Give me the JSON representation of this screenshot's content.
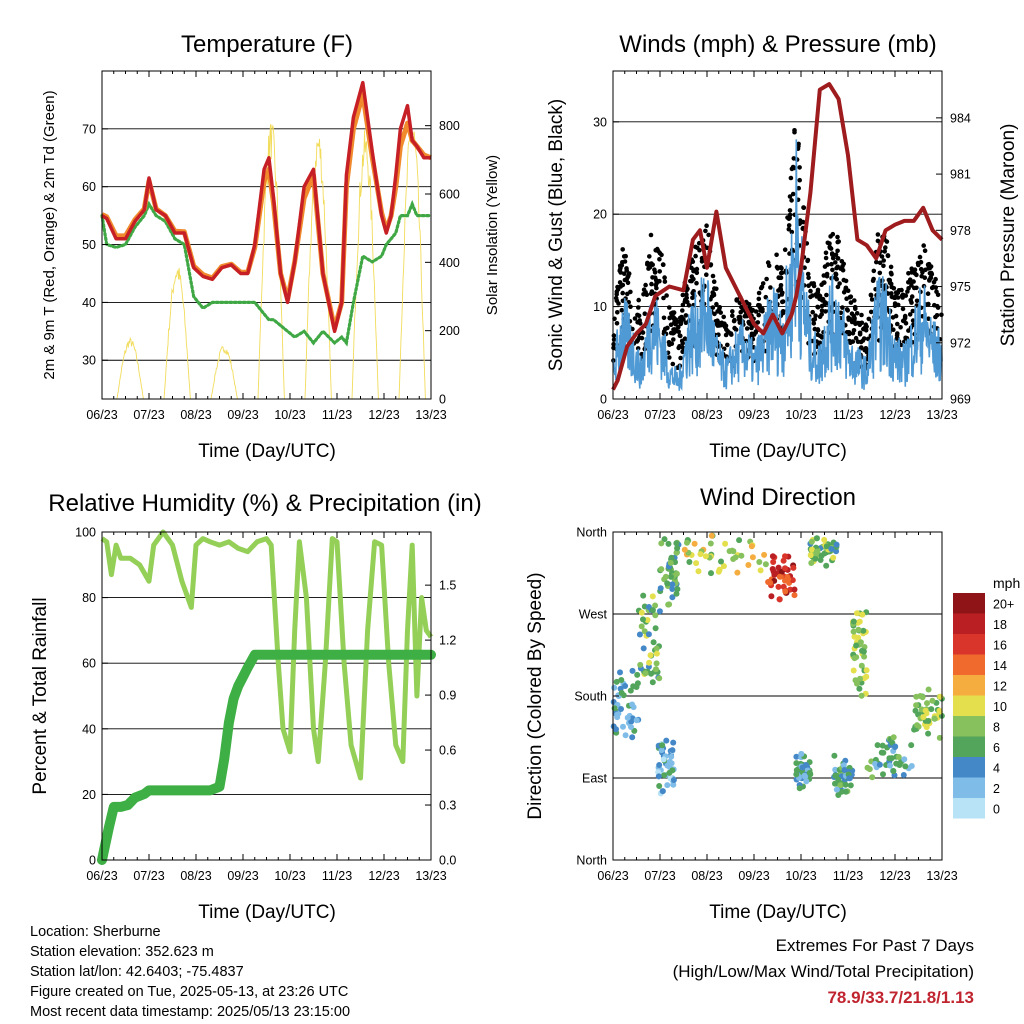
{
  "x_ticks": [
    "06/23",
    "07/23",
    "08/23",
    "09/23",
    "10/23",
    "11/23",
    "12/23",
    "13/23"
  ],
  "x_label": "Time (Day/UTC)",
  "colors": {
    "temp2m": "#c62026",
    "temp9m": "#f08a2c",
    "dew": "#3fa845",
    "solar": "#f2dc5b",
    "gust": "#000000",
    "wind": "#4f99d4",
    "pressure": "#9e1b1e",
    "rh": "#94cf58",
    "precip": "#3eaf44",
    "scale": [
      "#b8e2f5",
      "#7fbde8",
      "#4488c7",
      "#52a55b",
      "#86c15d",
      "#e4df4c",
      "#f5ad40",
      "#ef6a2c",
      "#d9352a",
      "#b91f23",
      "#8e1417"
    ]
  },
  "chart_data": [
    {
      "type": "line",
      "title": "Temperature (F)",
      "xlabel": "Time (Day/UTC)",
      "ylabel": "2m & 9m T (Red, Orange) & 2m Td (Green)",
      "y2label": "Solar Insolation (Yellow)",
      "xlim": [
        0,
        7
      ],
      "ylim": [
        23.3,
        80
      ],
      "yticks": [
        30,
        40,
        50,
        60,
        70
      ],
      "y2lim": [
        0,
        960
      ],
      "y2ticks": [
        0,
        200,
        400,
        600,
        800
      ],
      "x": [
        0,
        0.1,
        0.3,
        0.5,
        0.7,
        0.9,
        1.0,
        1.15,
        1.35,
        1.55,
        1.75,
        1.95,
        2.15,
        2.35,
        2.55,
        2.75,
        2.95,
        3.1,
        3.25,
        3.45,
        3.55,
        3.65,
        3.8,
        3.95,
        4.1,
        4.3,
        4.5,
        4.7,
        4.95,
        5.1,
        5.2,
        5.35,
        5.55,
        5.75,
        5.95,
        6.05,
        6.15,
        6.25,
        6.35,
        6.5,
        6.6,
        6.7,
        6.85,
        7.0
      ],
      "series": [
        {
          "name": "2m T",
          "values": [
            55,
            54.5,
            51,
            51,
            54,
            56,
            61.5,
            56,
            55,
            52,
            52,
            46,
            44.5,
            44,
            46,
            46.5,
            45,
            45,
            50,
            63,
            65,
            58,
            45,
            40,
            47,
            60,
            63,
            45,
            35,
            40,
            62,
            72,
            78,
            66,
            55,
            52,
            55,
            62,
            70,
            74,
            68,
            67,
            65,
            65
          ]
        },
        {
          "name": "9m T",
          "values": [
            55.2,
            54.8,
            51.5,
            51.5,
            54.3,
            56.2,
            61,
            56.2,
            55,
            52.3,
            52.2,
            46.3,
            44.8,
            44.2,
            46.2,
            46.6,
            45.2,
            45.2,
            49.5,
            61,
            63,
            57,
            45,
            40.5,
            47,
            58,
            62,
            45,
            35.5,
            40,
            60,
            70,
            76,
            65,
            55.5,
            52.5,
            55,
            60,
            67,
            71,
            68,
            67,
            65.5,
            65
          ]
        },
        {
          "name": "2m Td",
          "values": [
            55,
            50,
            49.5,
            50,
            53,
            55,
            57,
            55,
            54,
            51,
            50,
            41,
            39,
            40,
            40,
            40,
            40,
            40,
            40,
            38,
            37,
            37,
            36,
            35,
            34,
            35,
            33,
            35,
            33,
            34,
            33,
            40,
            48,
            47,
            48,
            50,
            51,
            52,
            55,
            55,
            57,
            55,
            55,
            55
          ]
        }
      ],
      "solar": {
        "peaks": [
          {
            "day": 0.6,
            "value": 180
          },
          {
            "day": 1.6,
            "value": 400
          },
          {
            "day": 2.6,
            "value": 160
          },
          {
            "day": 3.6,
            "value": 820
          },
          {
            "day": 4.6,
            "value": 800
          },
          {
            "day": 5.6,
            "value": 790
          },
          {
            "day": 6.6,
            "value": 840
          }
        ]
      }
    },
    {
      "type": "line",
      "title": "Winds (mph) & Pressure (mb)",
      "xlabel": "Time (Day/UTC)",
      "ylabel": "Sonic Wind & Gust (Blue, Black)",
      "y2label": "Station Pressure (Maroon)",
      "xlim": [
        0,
        7
      ],
      "ylim": [
        0,
        35.5
      ],
      "yticks": [
        0,
        10,
        20,
        30
      ],
      "y2lim": [
        969,
        986.5
      ],
      "y2ticks": [
        969,
        972,
        975,
        978,
        981,
        984
      ],
      "series": [
        {
          "name": "Gust envelope",
          "x": [
            0,
            0.2,
            0.4,
            0.6,
            0.8,
            1.0,
            1.2,
            1.4,
            1.6,
            1.8,
            2.0,
            2.2,
            2.4,
            2.6,
            2.8,
            3.0,
            3.2,
            3.4,
            3.6,
            3.8,
            3.9,
            4.0,
            4.2,
            4.4,
            4.6,
            4.8,
            5.0,
            5.2,
            5.4,
            5.6,
            5.8,
            6.0,
            6.2,
            6.4,
            6.6,
            6.8,
            7.0
          ],
          "values": [
            8,
            17,
            13,
            10,
            18,
            17,
            10,
            9,
            15,
            17,
            19,
            12,
            8,
            11,
            12,
            10,
            13,
            17,
            14,
            25,
            33,
            24,
            14,
            12,
            18,
            18,
            12,
            10,
            8,
            18,
            18,
            12,
            12,
            16,
            17,
            14,
            11
          ]
        },
        {
          "name": "Wind",
          "x": [
            0,
            0.2,
            0.4,
            0.6,
            0.8,
            1.0,
            1.2,
            1.4,
            1.6,
            1.8,
            2.0,
            2.2,
            2.4,
            2.6,
            2.8,
            3.0,
            3.2,
            3.4,
            3.6,
            3.8,
            3.9,
            4.0,
            4.2,
            4.4,
            4.6,
            4.8,
            5.0,
            5.2,
            5.4,
            5.6,
            5.8,
            6.0,
            6.2,
            6.4,
            6.6,
            6.8,
            7.0
          ],
          "values": [
            3,
            8,
            6,
            3,
            9,
            7,
            3,
            2,
            7,
            8,
            10,
            5,
            3,
            5,
            6,
            4,
            6,
            9,
            7,
            13,
            20,
            13,
            6,
            4,
            9,
            9,
            5,
            4,
            3,
            9,
            9,
            5,
            4,
            7,
            9,
            6,
            5
          ]
        },
        {
          "name": "Station Pressure",
          "x": [
            0,
            0.1,
            0.3,
            0.5,
            0.7,
            0.9,
            1.2,
            1.5,
            1.7,
            1.85,
            2.0,
            2.2,
            2.4,
            2.6,
            2.8,
            3.0,
            3.2,
            3.4,
            3.6,
            3.8,
            3.9,
            4.0,
            4.2,
            4.4,
            4.6,
            4.8,
            5.0,
            5.2,
            5.4,
            5.6,
            5.8,
            6.0,
            6.2,
            6.4,
            6.6,
            6.8,
            7.0
          ],
          "values": [
            969.5,
            970,
            971.8,
            972.5,
            973,
            974.5,
            975,
            974.8,
            977.5,
            978,
            976,
            979,
            976,
            975,
            974,
            973,
            972.5,
            973.5,
            972.5,
            973.5,
            974.5,
            976,
            980,
            985.5,
            985.8,
            985,
            982,
            977.5,
            977.2,
            976.5,
            978,
            978.3,
            978.5,
            978.5,
            979.2,
            978,
            977.5
          ]
        }
      ]
    },
    {
      "type": "line",
      "title": "Relative Humidity (%) & Precipitation (in)",
      "xlabel": "Time (Day/UTC)",
      "ylabel": "Percent & Total Rainfall",
      "xlim": [
        0,
        7
      ],
      "ylim": [
        0,
        100
      ],
      "yticks": [
        0,
        20,
        40,
        60,
        80,
        100
      ],
      "y2lim": [
        0,
        1.79
      ],
      "y2ticks": [
        0.0,
        0.3,
        0.6,
        0.9,
        1.2,
        1.5
      ],
      "y2tick_labels": [
        "0.0",
        "0.3",
        "0.6",
        "0.9",
        "1.2",
        "1.5"
      ],
      "series": [
        {
          "name": "RH",
          "x": [
            0,
            0.1,
            0.2,
            0.3,
            0.4,
            0.6,
            0.8,
            1.0,
            1.1,
            1.2,
            1.3,
            1.5,
            1.7,
            1.9,
            2.0,
            2.15,
            2.3,
            2.5,
            2.7,
            2.9,
            3.1,
            3.3,
            3.5,
            3.6,
            3.75,
            3.85,
            4.0,
            4.1,
            4.2,
            4.35,
            4.5,
            4.6,
            4.75,
            4.9,
            5.0,
            5.15,
            5.3,
            5.5,
            5.65,
            5.8,
            5.95,
            6.1,
            6.25,
            6.4,
            6.5,
            6.6,
            6.7,
            6.8,
            6.9,
            7.0
          ],
          "values": [
            98,
            97,
            87,
            96,
            92,
            92,
            90,
            85,
            96,
            98,
            100,
            96,
            85,
            77,
            96,
            98,
            97,
            96,
            97,
            95,
            94,
            97,
            98,
            96,
            60,
            40,
            33,
            70,
            97,
            80,
            40,
            30,
            60,
            98,
            97,
            60,
            35,
            25,
            70,
            97,
            96,
            60,
            35,
            30,
            70,
            96,
            50,
            80,
            70,
            68
          ]
        },
        {
          "name": "Total Rainfall",
          "x": [
            0,
            0.05,
            0.15,
            0.25,
            0.4,
            0.55,
            0.7,
            0.9,
            1.0,
            1.2,
            1.6,
            2.0,
            2.3,
            2.5,
            2.6,
            2.7,
            2.8,
            2.9,
            3.0,
            3.1,
            3.25,
            3.5,
            4.0,
            5.0,
            6.0,
            7.0
          ],
          "values": [
            0,
            0.06,
            0.18,
            0.29,
            0.29,
            0.3,
            0.34,
            0.36,
            0.38,
            0.38,
            0.38,
            0.38,
            0.38,
            0.4,
            0.55,
            0.75,
            0.88,
            0.95,
            1.0,
            1.05,
            1.12,
            1.12,
            1.12,
            1.12,
            1.12,
            1.12
          ]
        }
      ]
    },
    {
      "type": "scatter",
      "title": "Wind Direction",
      "xlabel": "Time (Day/UTC)",
      "ylabel": "Direction (Colored By Speed)",
      "xlim": [
        0,
        7
      ],
      "ylim": [
        0,
        360
      ],
      "yticks": [
        "North",
        "East",
        "South",
        "West",
        "North"
      ],
      "colorbar_label": "mph",
      "colorbar_ticks": [
        "0",
        "2",
        "4",
        "6",
        "8",
        "10",
        "12",
        "14",
        "16",
        "18",
        "20+"
      ],
      "clusters": [
        {
          "x0": 0.0,
          "x1": 0.55,
          "dir0": 140,
          "dir1": 200,
          "speed": 4
        },
        {
          "x0": 0.55,
          "x1": 1.0,
          "dir0": 200,
          "dir1": 290,
          "speed": 7
        },
        {
          "x0": 0.95,
          "x1": 1.3,
          "dir0": 80,
          "dir1": 130,
          "speed": 3
        },
        {
          "x0": 1.0,
          "x1": 1.4,
          "dir0": 280,
          "dir1": 350,
          "speed": 6
        },
        {
          "x0": 1.4,
          "x1": 3.3,
          "dir0": 320,
          "dir1": 350,
          "speed": 9
        },
        {
          "x0": 3.3,
          "x1": 3.9,
          "dir0": 290,
          "dir1": 330,
          "speed": 17
        },
        {
          "x0": 3.9,
          "x1": 4.2,
          "dir0": 85,
          "dir1": 110,
          "speed": 4
        },
        {
          "x0": 4.2,
          "x1": 4.8,
          "dir0": 330,
          "dir1": 350,
          "speed": 7
        },
        {
          "x0": 4.7,
          "x1": 5.1,
          "dir0": 75,
          "dir1": 105,
          "speed": 5
        },
        {
          "x0": 5.1,
          "x1": 5.4,
          "dir0": 190,
          "dir1": 270,
          "speed": 8
        },
        {
          "x0": 5.4,
          "x1": 6.4,
          "dir0": 95,
          "dir1": 130,
          "speed": 5
        },
        {
          "x0": 6.4,
          "x1": 7.0,
          "dir0": 140,
          "dir1": 180,
          "speed": 8
        }
      ]
    }
  ],
  "info": {
    "location": "Location: Sherburne",
    "elevation": "Station elevation: 352.623 m",
    "latlon": "Station lat/lon: 42.6403; -75.4837",
    "created": "Figure created on Tue, 2025-05-13, at 23:26 UTC",
    "recent": "Most recent data timestamp: 2025/05/13 23:15:00"
  },
  "extremes": {
    "heading": "Extremes For Past 7 Days",
    "subheading": "(High/Low/Max Wind/Total Precipitation)",
    "values": "78.9/33.7/21.8/1.13"
  }
}
